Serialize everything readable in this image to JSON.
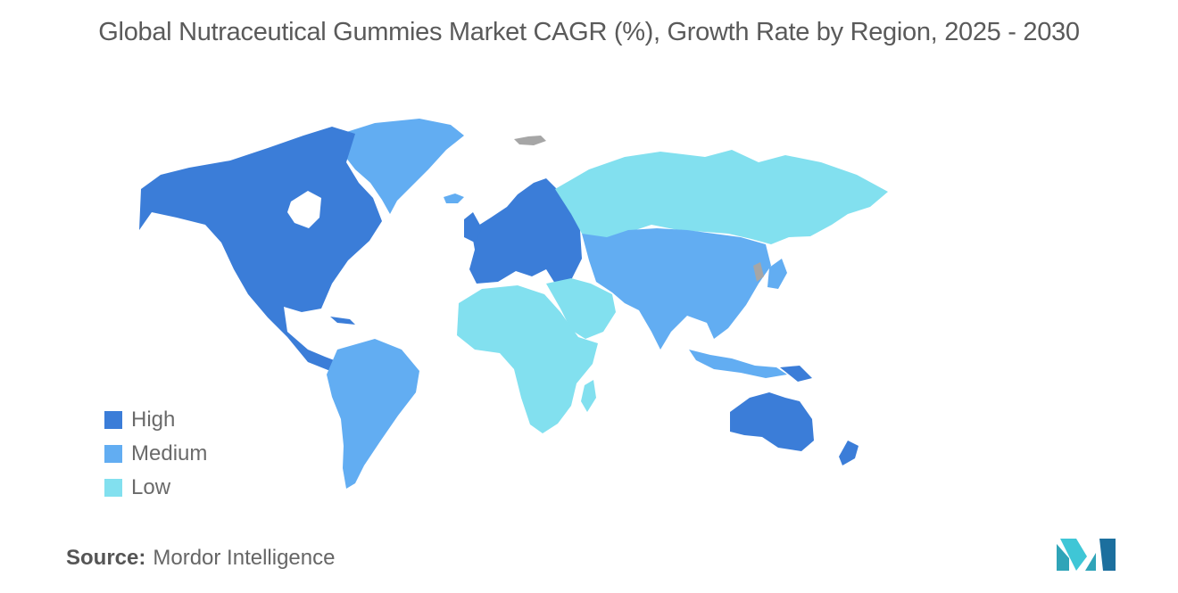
{
  "title": "Global Nutraceutical Gummies Market CAGR (%), Growth Rate by Region, 2025 - 2030",
  "legend": {
    "items": [
      {
        "label": "High",
        "color": "#3b7dd8"
      },
      {
        "label": "Medium",
        "color": "#62adf2"
      },
      {
        "label": "Low",
        "color": "#82e0ef"
      }
    ]
  },
  "no_data_color": "#a6a6a6",
  "regions": {
    "north_america": "High",
    "europe": "High",
    "oceania": "High",
    "south_america": "Medium",
    "greenland": "Medium",
    "asia": "Medium",
    "africa": "Low",
    "middle_east": "Low",
    "russia": "Low"
  },
  "source": {
    "label": "Source:",
    "text": "Mordor Intelligence"
  }
}
